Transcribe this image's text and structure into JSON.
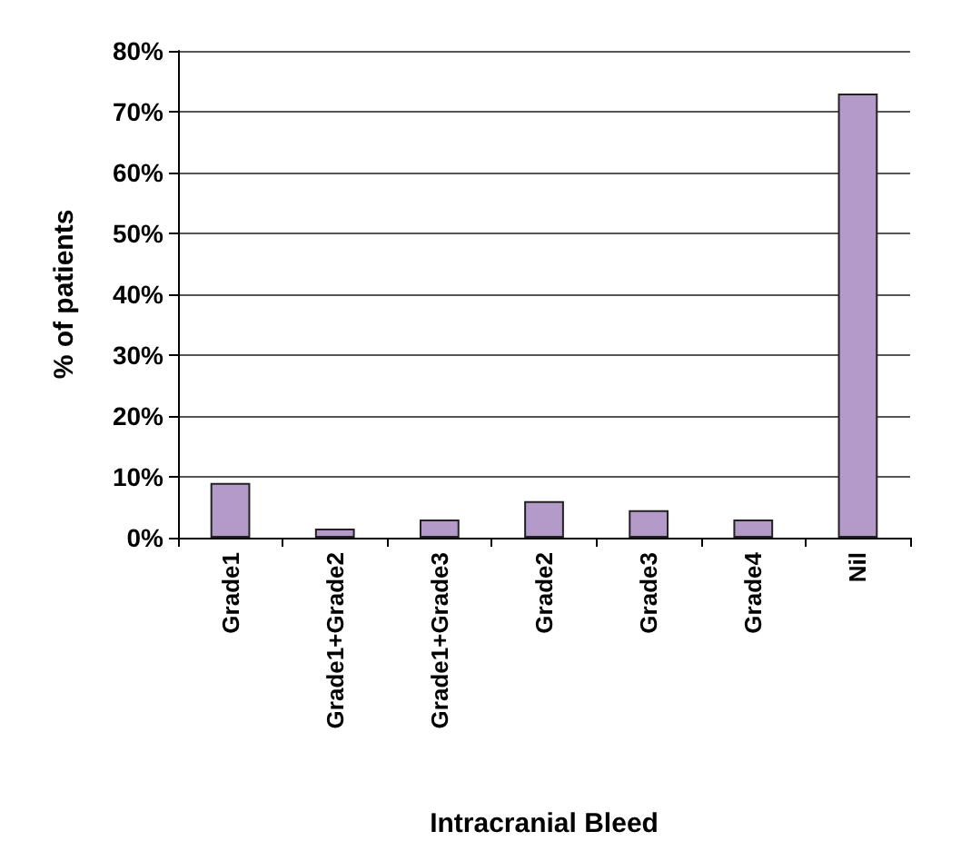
{
  "chart_data": {
    "type": "bar",
    "xlabel": "Intracranial Bleed",
    "ylabel": "% of patients",
    "categories": [
      "Grade1",
      "Grade1+Grade2",
      "Grade1+Grade3",
      "Grade2",
      "Grade3",
      "Grade4",
      "Nil"
    ],
    "values": [
      9,
      1.5,
      3,
      6,
      4.5,
      3,
      73
    ],
    "color": "#b49ac8",
    "ylim": [
      0,
      80
    ],
    "yticks": [
      {
        "value": 0,
        "label": "0%"
      },
      {
        "value": 10,
        "label": "10%"
      },
      {
        "value": 20,
        "label": "20%"
      },
      {
        "value": 30,
        "label": "30%"
      },
      {
        "value": 40,
        "label": "40%"
      },
      {
        "value": 50,
        "label": "50%"
      },
      {
        "value": 60,
        "label": "60%"
      },
      {
        "value": 70,
        "label": "70%"
      },
      {
        "value": 80,
        "label": "80%"
      }
    ],
    "grid": "y"
  }
}
